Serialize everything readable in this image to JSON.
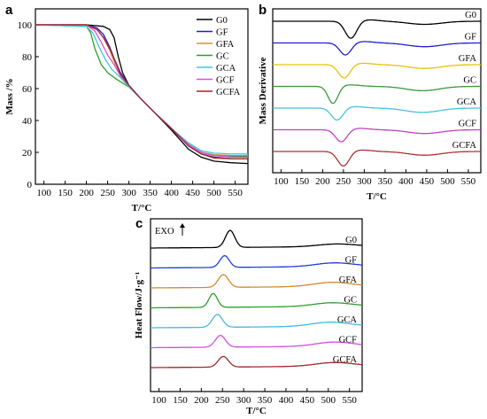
{
  "chart_data": [
    {
      "panel": "a",
      "type": "line",
      "xlabel": "T/°C",
      "ylabel": "Mass /%",
      "xlim": [
        80,
        580
      ],
      "ylim": [
        0,
        110
      ],
      "xticks": [
        100,
        150,
        200,
        250,
        300,
        350,
        400,
        450,
        500,
        550
      ],
      "yticks": [
        0,
        20,
        40,
        60,
        80,
        100
      ],
      "legend_position": "top-right",
      "series": [
        {
          "name": "G0",
          "color": "#000000",
          "x": [
            80,
            200,
            240,
            255,
            265,
            275,
            285,
            300,
            330,
            360,
            400,
            440,
            470,
            500,
            540,
            580
          ],
          "y": [
            100,
            100,
            99,
            97,
            92,
            80,
            70,
            62,
            53,
            45,
            34,
            22,
            17,
            14.5,
            13.5,
            13
          ]
        },
        {
          "name": "GF",
          "color": "#1f1fd6",
          "x": [
            80,
            200,
            225,
            240,
            255,
            265,
            280,
            300,
            330,
            360,
            400,
            440,
            470,
            500,
            540,
            580
          ],
          "y": [
            100,
            100,
            98,
            94,
            86,
            79,
            70,
            62,
            53,
            45,
            35,
            24,
            19,
            17,
            16,
            16
          ]
        },
        {
          "name": "GFA",
          "color": "#d4932b",
          "x": [
            80,
            200,
            225,
            240,
            255,
            265,
            280,
            300,
            330,
            360,
            400,
            440,
            470,
            500,
            540,
            580
          ],
          "y": [
            100,
            100,
            97,
            92,
            84,
            77,
            69,
            62,
            53,
            45,
            35,
            25,
            20,
            18.5,
            18,
            18
          ]
        },
        {
          "name": "GC",
          "color": "#2ca02c",
          "x": [
            80,
            200,
            210,
            220,
            235,
            250,
            270,
            300,
            330,
            360,
            400,
            440,
            470,
            500,
            540,
            580
          ],
          "y": [
            100,
            99,
            95,
            85,
            75,
            70,
            66,
            61,
            53,
            45,
            35,
            25,
            20,
            18,
            17.5,
            17.5
          ]
        },
        {
          "name": "GCA",
          "color": "#3ec8d4",
          "x": [
            80,
            200,
            215,
            230,
            245,
            260,
            280,
            300,
            330,
            360,
            400,
            440,
            470,
            500,
            540,
            580
          ],
          "y": [
            100,
            99,
            95,
            86,
            78,
            72,
            67,
            61,
            53,
            45,
            35,
            26,
            21,
            19.5,
            19,
            19
          ]
        },
        {
          "name": "GCF",
          "color": "#d94fd9",
          "x": [
            80,
            200,
            220,
            235,
            250,
            265,
            280,
            300,
            330,
            360,
            400,
            440,
            470,
            500,
            540,
            580
          ],
          "y": [
            100,
            100,
            96,
            89,
            81,
            75,
            68,
            62,
            53,
            45,
            35,
            25,
            20,
            18,
            17,
            17
          ]
        },
        {
          "name": "GCFA",
          "color": "#a0282d",
          "x": [
            80,
            200,
            225,
            240,
            255,
            268,
            280,
            300,
            330,
            360,
            400,
            440,
            470,
            500,
            540,
            580
          ],
          "y": [
            100,
            100,
            97,
            92,
            85,
            77,
            69,
            62,
            53,
            45,
            35,
            24,
            19,
            16.5,
            16,
            16
          ]
        }
      ]
    },
    {
      "panel": "b",
      "type": "line",
      "xlabel": "T/°C",
      "ylabel": "Mass Derivative",
      "xlim": [
        80,
        580
      ],
      "xticks": [
        100,
        150,
        200,
        250,
        300,
        350,
        400,
        450,
        500,
        550
      ],
      "series": [
        {
          "name": "G0",
          "color": "#000000",
          "peak_x": 268,
          "peak_depth": 1.4,
          "peak_width": 14,
          "hump_x": 445,
          "hump_depth": 0.25
        },
        {
          "name": "GF",
          "color": "#1f1fd6",
          "peak_x": 255,
          "peak_depth": 1.0,
          "peak_width": 14,
          "hump_x": 445,
          "hump_depth": 0.3
        },
        {
          "name": "GFA",
          "color": "#e8c20a",
          "peak_x": 252,
          "peak_depth": 1.1,
          "peak_width": 14,
          "hump_x": 445,
          "hump_depth": 0.3
        },
        {
          "name": "GC",
          "color": "#3a9a3a",
          "peak_x": 225,
          "peak_depth": 1.4,
          "peak_width": 12,
          "hump_x": 440,
          "hump_depth": 0.35
        },
        {
          "name": "GCA",
          "color": "#45c2e0",
          "peak_x": 235,
          "peak_depth": 1.0,
          "peak_width": 14,
          "hump_x": 440,
          "hump_depth": 0.35
        },
        {
          "name": "GCF",
          "color": "#c040c8",
          "peak_x": 245,
          "peak_depth": 1.0,
          "peak_width": 14,
          "hump_x": 445,
          "hump_depth": 0.3
        },
        {
          "name": "GCFA",
          "color": "#b03030",
          "peak_x": 250,
          "peak_depth": 1.2,
          "peak_width": 14,
          "hump_x": 445,
          "hump_depth": 0.3
        }
      ]
    },
    {
      "panel": "c",
      "type": "line",
      "xlabel": "T/°C",
      "ylabel": "Heat Flow/J·g⁻¹",
      "annotation": "EXO",
      "xlim": [
        80,
        580
      ],
      "xticks": [
        100,
        150,
        200,
        250,
        300,
        350,
        400,
        450,
        500,
        550
      ],
      "series": [
        {
          "name": "G0",
          "color": "#000000",
          "peak_x": 268,
          "peak_height": 1.6,
          "peak_width": 11,
          "hump_x": 520,
          "hump_height": 0.25
        },
        {
          "name": "GF",
          "color": "#1f3fd6",
          "peak_x": 255,
          "peak_height": 1.1,
          "peak_width": 11,
          "hump_x": 515,
          "hump_height": 0.35
        },
        {
          "name": "GFA",
          "color": "#d48a2b",
          "peak_x": 252,
          "peak_height": 1.2,
          "peak_width": 12,
          "hump_x": 510,
          "hump_height": 0.4
        },
        {
          "name": "GC",
          "color": "#2ca02c",
          "peak_x": 228,
          "peak_height": 1.3,
          "peak_width": 10,
          "hump_x": 510,
          "hump_height": 0.35
        },
        {
          "name": "GCA",
          "color": "#45b8e0",
          "peak_x": 238,
          "peak_height": 1.2,
          "peak_width": 12,
          "hump_x": 505,
          "hump_height": 0.4
        },
        {
          "name": "GCF",
          "color": "#d050d8",
          "peak_x": 245,
          "peak_height": 1.1,
          "peak_width": 12,
          "hump_x": 515,
          "hump_height": 0.4
        },
        {
          "name": "GCFA",
          "color": "#a02828",
          "peak_x": 252,
          "peak_height": 1.0,
          "peak_width": 12,
          "hump_x": 515,
          "hump_height": 0.35
        }
      ]
    }
  ]
}
